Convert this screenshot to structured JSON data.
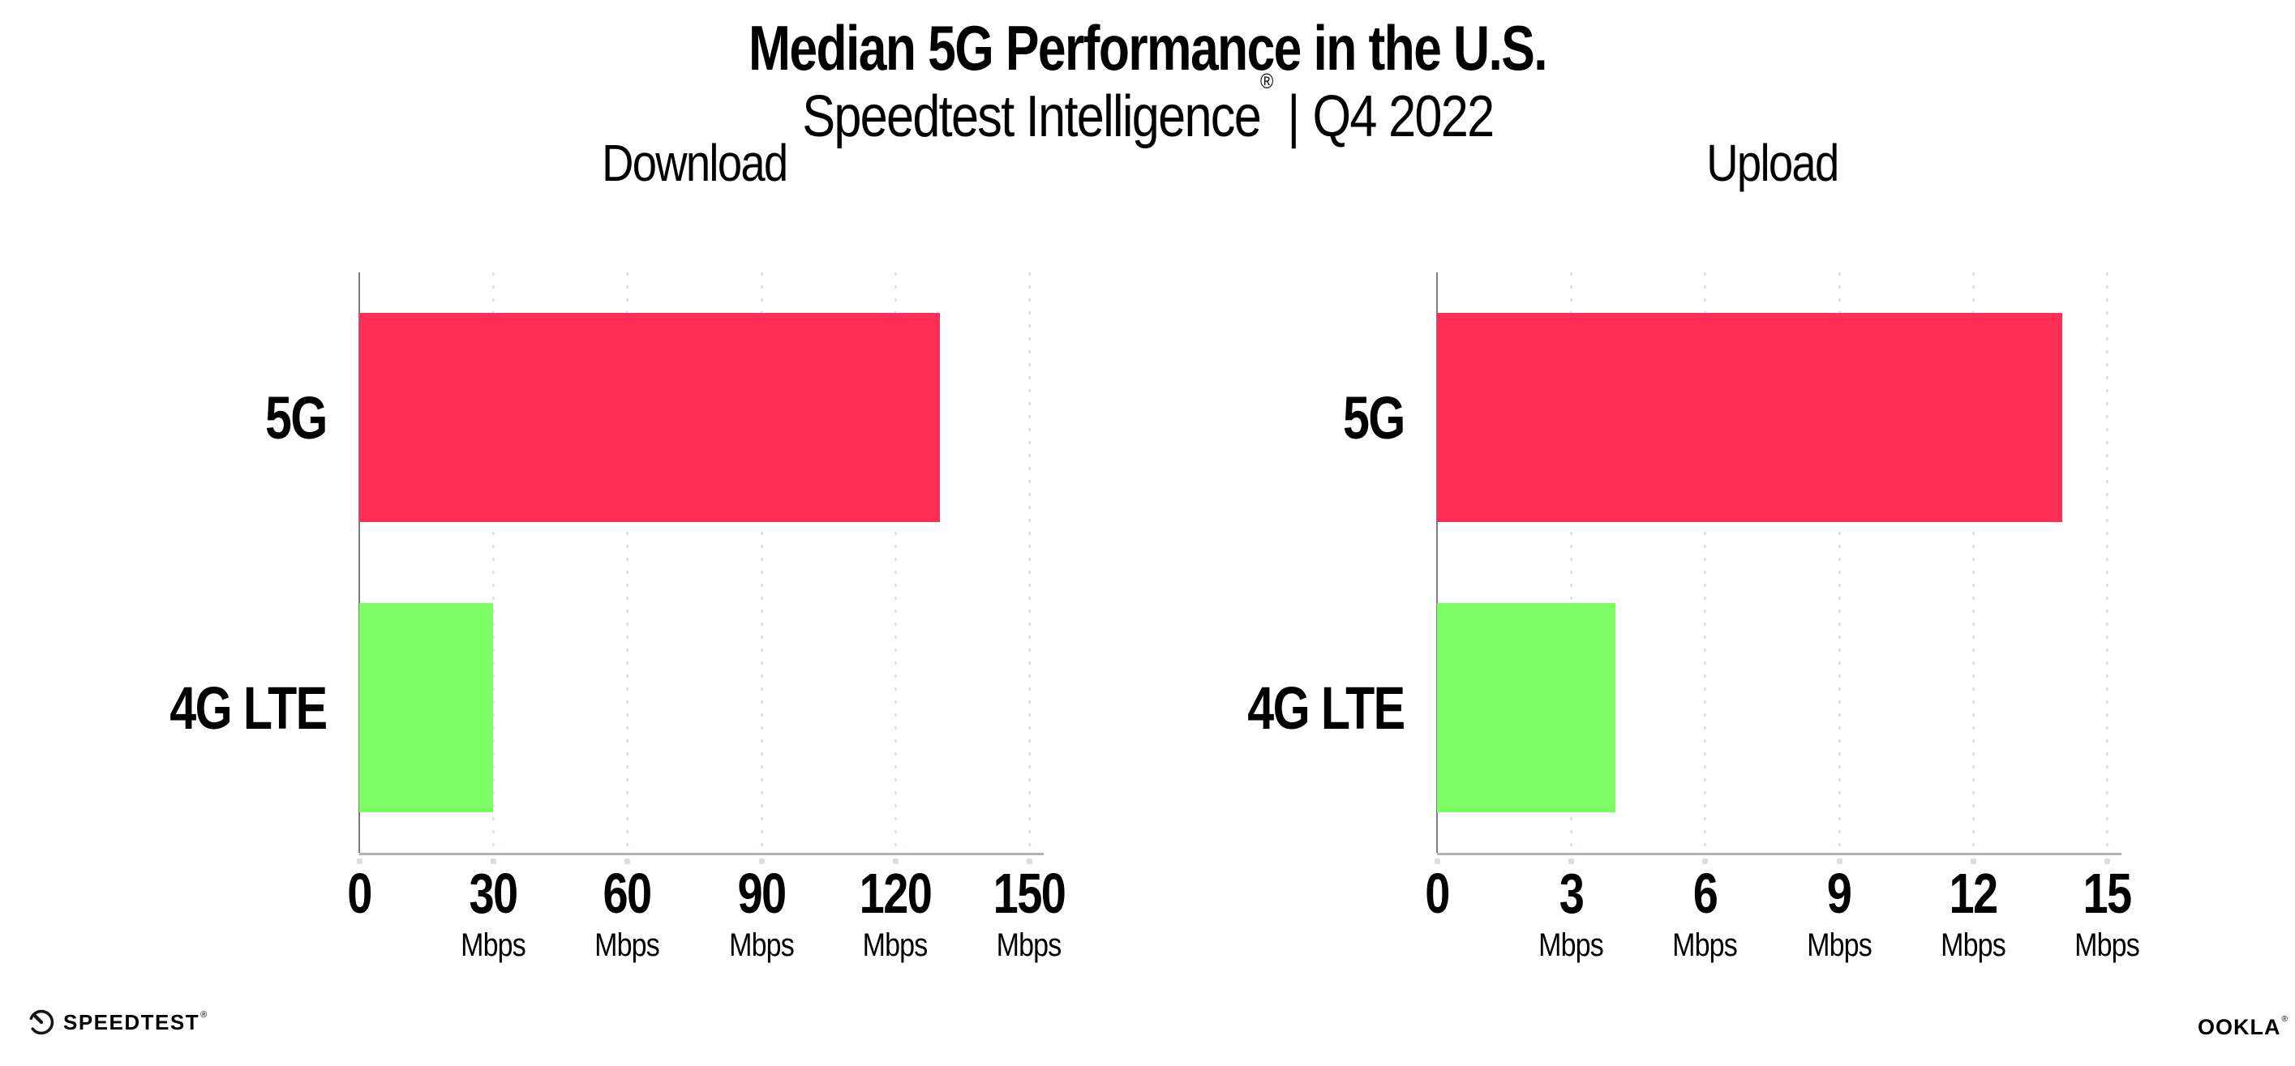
{
  "header": {
    "title": "Median 5G Performance in the U.S.",
    "subtitle_brand": "Speedtest Intelligence",
    "subtitle_reg": "®",
    "subtitle_separator": "|",
    "subtitle_period": "Q4 2022"
  },
  "chart_data": [
    {
      "type": "bar",
      "orientation": "horizontal",
      "title": "Download",
      "categories": [
        "5G",
        "4G LTE"
      ],
      "values": [
        130,
        30
      ],
      "unit": "Mbps",
      "xlim": [
        0,
        150
      ],
      "xticks": [
        0,
        30,
        60,
        90,
        120,
        150
      ],
      "grid": "dotted-vertical",
      "legend": "none",
      "bar_colors": [
        "#FF2E56",
        "#7DFE64"
      ]
    },
    {
      "type": "bar",
      "orientation": "horizontal",
      "title": "Upload",
      "categories": [
        "5G",
        "4G LTE"
      ],
      "values": [
        14,
        4
      ],
      "unit": "Mbps",
      "xlim": [
        0,
        15
      ],
      "xticks": [
        0,
        3,
        6,
        9,
        12,
        15
      ],
      "grid": "dotted-vertical",
      "legend": "none",
      "bar_colors": [
        "#FF2E56",
        "#7DFE64"
      ]
    }
  ],
  "footer": {
    "speedtest_logo_text": "SPEEDTEST",
    "speedtest_reg": "®",
    "ookla_logo_text": "OOKLA",
    "ookla_reg": "®"
  },
  "colors": {
    "bar_5g": "#FF2E56",
    "bar_4g_lte": "#7DFE64",
    "x_axis": "#B2B2BA",
    "y_axis": "#7C7C86",
    "gridline": "#DFE1EC",
    "text": "#000000",
    "background": "#FFFFFF"
  }
}
